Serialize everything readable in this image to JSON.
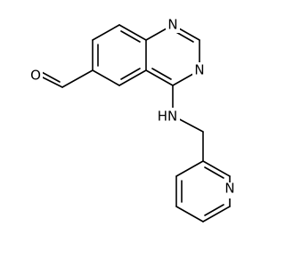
{
  "atoms": [
    {
      "label": "O"
    },
    {
      "label": "N"
    },
    {
      "label": "N"
    },
    {
      "label": "HN"
    },
    {
      "label": "N"
    }
  ]
}
